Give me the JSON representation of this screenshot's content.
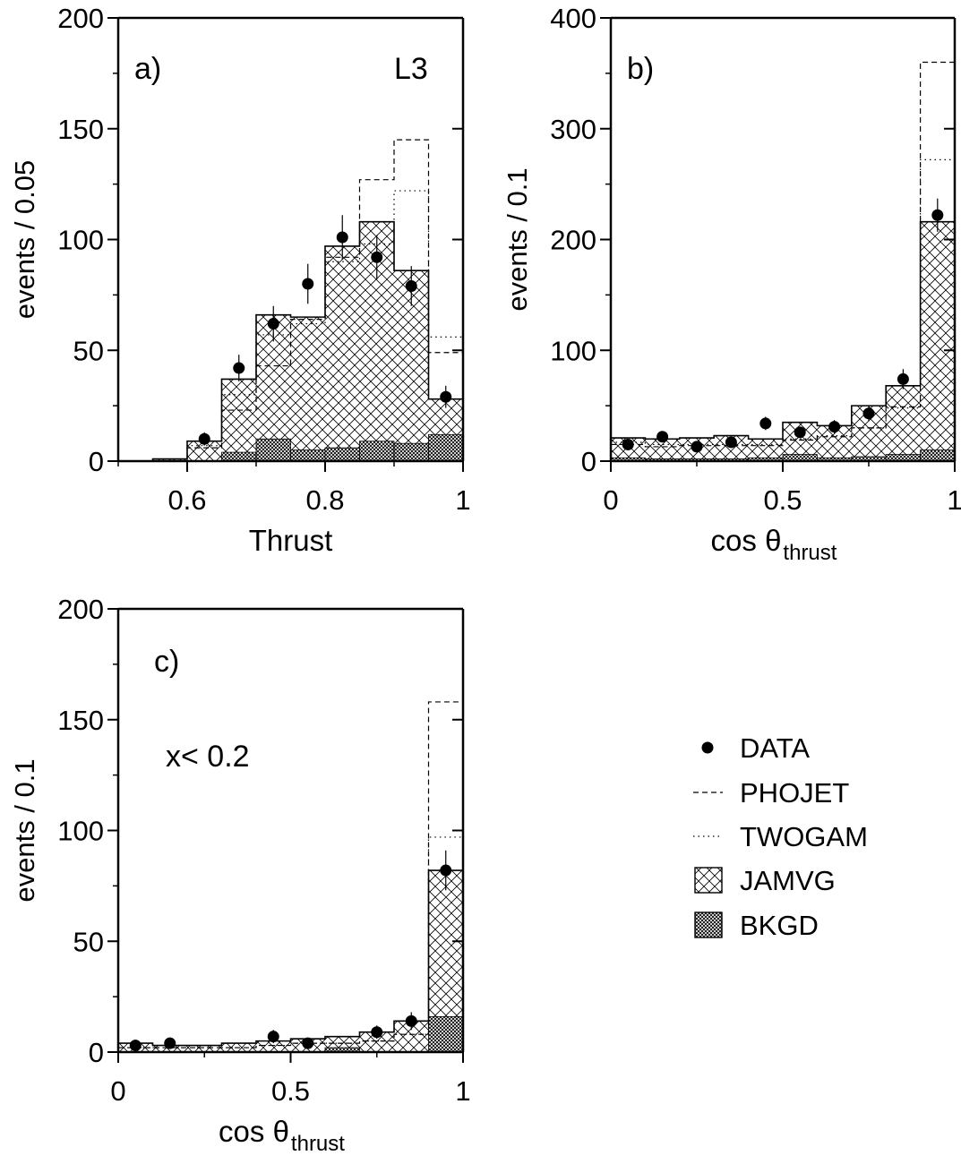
{
  "legend": {
    "items": [
      {
        "label": "DATA",
        "style": "marker"
      },
      {
        "label": "PHOJET",
        "style": "dashed"
      },
      {
        "label": "TWOGAM",
        "style": "dotted"
      },
      {
        "label": "JAMVG",
        "style": "crosshatch"
      },
      {
        "label": "BKGD",
        "style": "densehatch"
      }
    ]
  },
  "chart_data": [
    {
      "type": "bar",
      "panel_label": "a)",
      "experiment_label": "L3",
      "annotation": "",
      "xlabel_main": "Thrust",
      "xlabel_sub": "",
      "ylabel": "events / 0.05",
      "xlim": [
        0.5,
        1.0
      ],
      "ylim": [
        0,
        200
      ],
      "xticks": [
        0.6,
        0.8,
        1.0
      ],
      "xtick_labels": [
        "0.6",
        "0.8",
        "1"
      ],
      "yticks": [
        0,
        50,
        100,
        150,
        200
      ],
      "ytick_labels": [
        "0",
        "50",
        "100",
        "150",
        "200"
      ],
      "bin_edges": [
        0.5,
        0.55,
        0.6,
        0.65,
        0.7,
        0.75,
        0.8,
        0.85,
        0.9,
        0.95,
        1.0
      ],
      "series": [
        {
          "name": "JAMVG",
          "values": [
            0,
            1,
            9,
            37,
            66,
            65,
            97,
            108,
            86,
            28
          ]
        },
        {
          "name": "BKGD",
          "values": [
            0,
            0,
            0,
            4,
            10,
            5,
            6,
            9,
            8,
            12
          ]
        },
        {
          "name": "PHOJET",
          "values": [
            0,
            0,
            6,
            23,
            43,
            64,
            92,
            127,
            145,
            49
          ]
        },
        {
          "name": "TWOGAM",
          "values": [
            0,
            0,
            7,
            30,
            57,
            62,
            90,
            98,
            122,
            56
          ]
        }
      ],
      "data_points": {
        "x": [
          0.625,
          0.675,
          0.725,
          0.775,
          0.825,
          0.875,
          0.925,
          0.975
        ],
        "y": [
          10,
          42,
          62,
          80,
          101,
          92,
          79,
          29
        ],
        "err": [
          3,
          6,
          8,
          9,
          10,
          10,
          9,
          5
        ]
      }
    },
    {
      "type": "bar",
      "panel_label": "b)",
      "experiment_label": "",
      "annotation": "",
      "xlabel_main": "cos θ",
      "xlabel_sub": "thrust",
      "ylabel": "events / 0.1",
      "xlim": [
        0,
        1
      ],
      "ylim": [
        0,
        400
      ],
      "xticks": [
        0,
        0.5,
        1.0
      ],
      "xtick_labels": [
        "0",
        "0.5",
        "1"
      ],
      "yticks": [
        0,
        100,
        200,
        300,
        400
      ],
      "ytick_labels": [
        "0",
        "100",
        "200",
        "300",
        "400"
      ],
      "bin_edges": [
        0,
        0.1,
        0.2,
        0.3,
        0.4,
        0.5,
        0.6,
        0.7,
        0.8,
        0.9,
        1.0
      ],
      "series": [
        {
          "name": "JAMVG",
          "values": [
            21,
            20,
            21,
            23,
            20,
            35,
            32,
            50,
            68,
            216
          ]
        },
        {
          "name": "BKGD",
          "values": [
            3,
            2,
            2,
            2,
            3,
            6,
            3,
            4,
            6,
            10
          ]
        },
        {
          "name": "PHOJET",
          "values": [
            15,
            13,
            14,
            14,
            14,
            19,
            22,
            30,
            49,
            360
          ]
        },
        {
          "name": "TWOGAM",
          "values": [
            17,
            15,
            15,
            15,
            15,
            20,
            23,
            30,
            48,
            272
          ]
        }
      ],
      "data_points": {
        "x": [
          0.05,
          0.15,
          0.25,
          0.35,
          0.45,
          0.55,
          0.65,
          0.75,
          0.85,
          0.95
        ],
        "y": [
          15,
          22,
          13,
          17,
          34,
          26,
          31,
          43,
          74,
          222
        ],
        "err": [
          4,
          5,
          4,
          4,
          6,
          5,
          6,
          7,
          9,
          15
        ]
      }
    },
    {
      "type": "bar",
      "panel_label": "c)",
      "experiment_label": "",
      "annotation": "x< 0.2",
      "xlabel_main": "cos θ",
      "xlabel_sub": "thrust",
      "ylabel": "events / 0.1",
      "xlim": [
        0,
        1
      ],
      "ylim": [
        0,
        200
      ],
      "xticks": [
        0,
        0.5,
        1.0
      ],
      "xtick_labels": [
        "0",
        "0.5",
        "1"
      ],
      "yticks": [
        0,
        50,
        100,
        150,
        200
      ],
      "ytick_labels": [
        "0",
        "50",
        "100",
        "150",
        "200"
      ],
      "bin_edges": [
        0,
        0.1,
        0.2,
        0.3,
        0.4,
        0.5,
        0.6,
        0.7,
        0.8,
        0.9,
        1.0
      ],
      "series": [
        {
          "name": "JAMVG",
          "values": [
            4,
            3,
            3,
            4,
            5,
            6,
            7,
            9,
            14,
            82
          ]
        },
        {
          "name": "BKGD",
          "values": [
            0,
            0,
            0,
            0,
            0,
            0,
            2,
            0,
            0,
            16
          ]
        },
        {
          "name": "PHOJET",
          "values": [
            2,
            2,
            2,
            2,
            3,
            4,
            4,
            5,
            8,
            158
          ]
        },
        {
          "name": "TWOGAM",
          "values": [
            2,
            2,
            2,
            2,
            3,
            4,
            4,
            5,
            8,
            97
          ]
        }
      ],
      "data_points": {
        "x": [
          0.05,
          0.15,
          0.45,
          0.55,
          0.75,
          0.85,
          0.95
        ],
        "y": [
          3,
          4,
          7,
          4,
          9,
          14,
          82
        ],
        "err": [
          2,
          2,
          3,
          2,
          3,
          4,
          9
        ]
      }
    }
  ]
}
